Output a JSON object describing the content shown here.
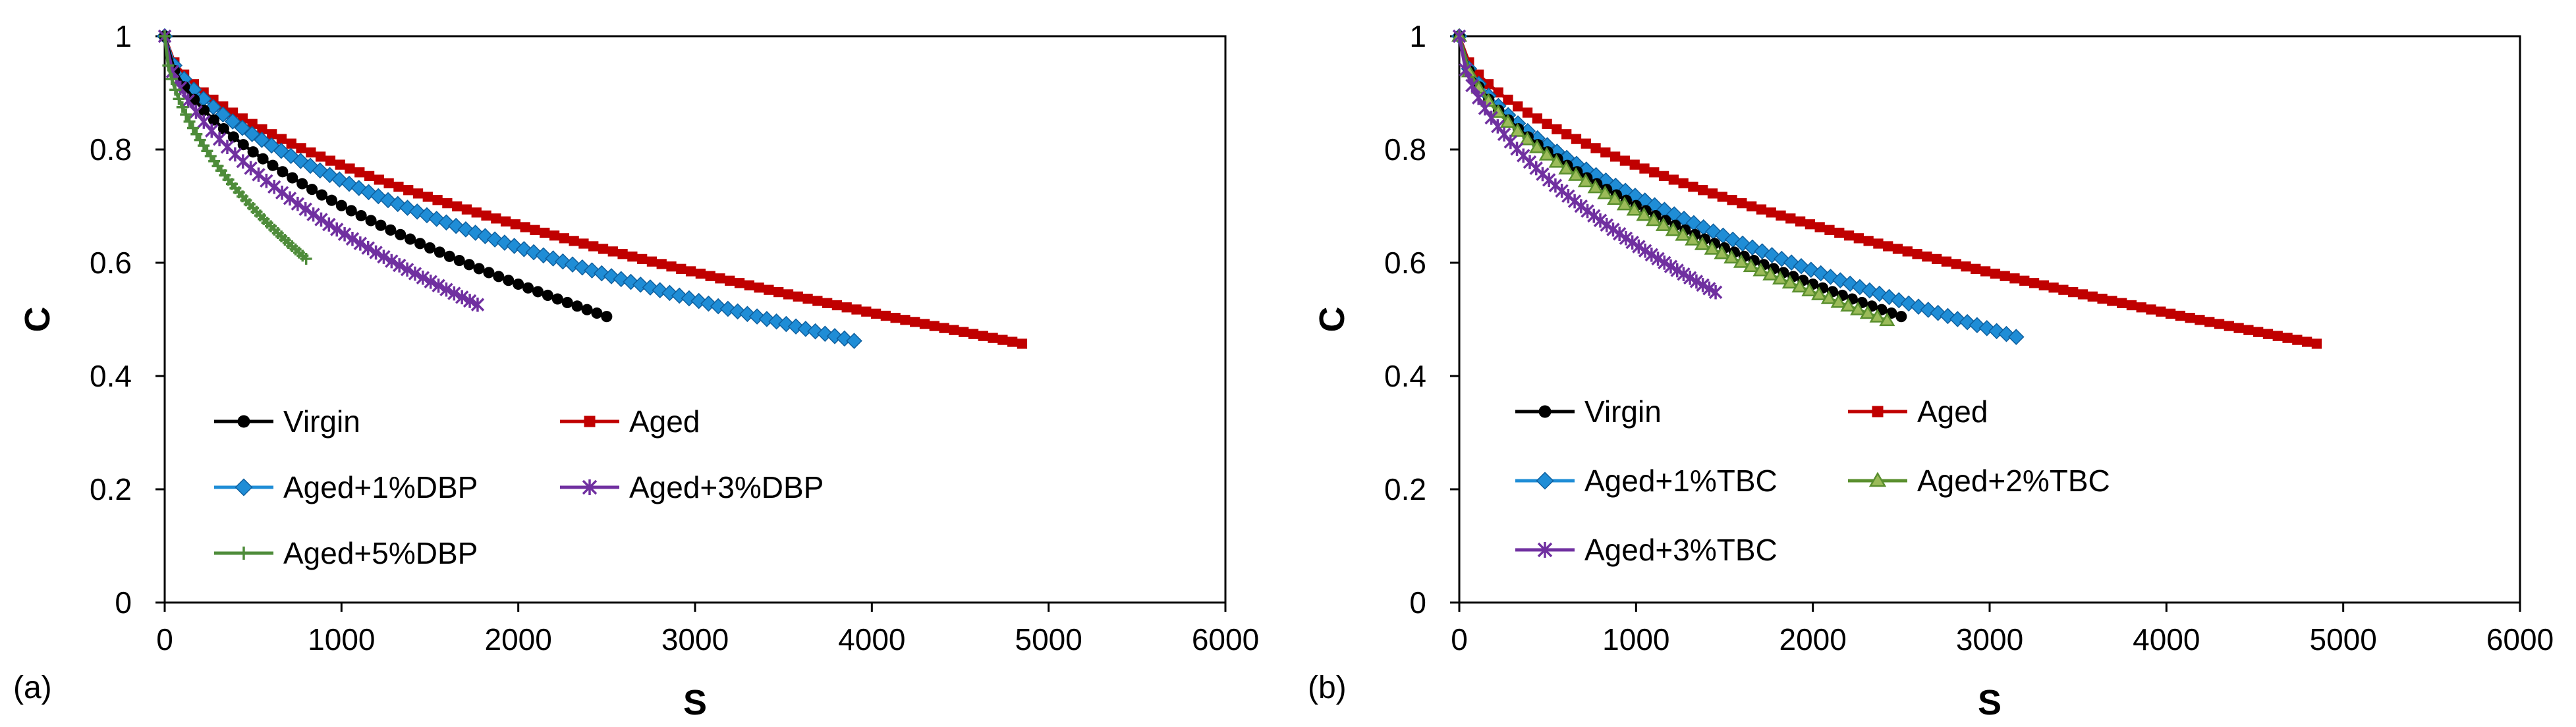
{
  "chart_data": [
    {
      "type": "scatter",
      "panel_label": "(a)",
      "xlabel": "S",
      "ylabel": "C",
      "xlim": [
        0,
        6000
      ],
      "ylim": [
        0,
        1
      ],
      "xticks": [
        "0",
        "1000",
        "2000",
        "3000",
        "4000",
        "5000",
        "6000"
      ],
      "yticks": [
        "0",
        "0.2",
        "0.4",
        "0.6",
        "0.8",
        "1"
      ],
      "grid": false,
      "legend": "bottom-left",
      "series": [
        {
          "name": "Virgin",
          "color": "#000000",
          "marker": "circle",
          "x_end": 2500,
          "c_end": 0.505
        },
        {
          "name": "Aged",
          "color": "#c00000",
          "marker": "square",
          "x_end": 4850,
          "c_end": 0.457
        },
        {
          "name": "Aged+1%DBP",
          "color": "#1f8dd6",
          "marker": "diamond",
          "x_end": 3900,
          "c_end": 0.462
        },
        {
          "name": "Aged+3%DBP",
          "color": "#7030a0",
          "marker": "asterisk",
          "x_end": 1770,
          "c_end": 0.526
        },
        {
          "name": "Aged+5%DBP",
          "color": "#4e8c3a",
          "marker": "plus",
          "x_end": 800,
          "c_end": 0.607
        }
      ]
    },
    {
      "type": "scatter",
      "panel_label": "(b)",
      "xlabel": "S",
      "ylabel": "C",
      "xlim": [
        0,
        6000
      ],
      "ylim": [
        0,
        1
      ],
      "xticks": [
        "0",
        "1000",
        "2000",
        "3000",
        "4000",
        "5000",
        "6000"
      ],
      "yticks": [
        "0",
        "0.2",
        "0.4",
        "0.6",
        "0.8",
        "1"
      ],
      "grid": false,
      "legend": "bottom-left",
      "series": [
        {
          "name": "Virgin",
          "color": "#000000",
          "marker": "circle",
          "x_end": 2500,
          "c_end": 0.505
        },
        {
          "name": "Aged",
          "color": "#c00000",
          "marker": "square",
          "x_end": 4850,
          "c_end": 0.457
        },
        {
          "name": "Aged+1%TBC",
          "color": "#1f8dd6",
          "marker": "diamond",
          "x_end": 3150,
          "c_end": 0.469
        },
        {
          "name": "Aged+2%TBC",
          "color": "#5a8f2e",
          "marker": "triangle",
          "x_end": 2420,
          "c_end": 0.498
        },
        {
          "name": "Aged+3%TBC",
          "color": "#7030a0",
          "marker": "asterisk",
          "x_end": 1450,
          "c_end": 0.548
        }
      ]
    }
  ]
}
